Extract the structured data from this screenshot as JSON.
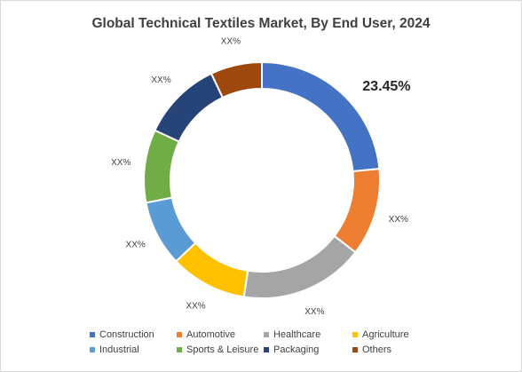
{
  "chart_data": {
    "type": "pie",
    "variant": "donut",
    "title": "Global Technical Textiles Market, By End User, 2024",
    "categories": [
      "Construction",
      "Automotive",
      "Healthcare",
      "Agriculture",
      "Industrial",
      "Sports & Leisure",
      "Packaging",
      "Others"
    ],
    "values": [
      23.45,
      12.0,
      17.0,
      10.5,
      9.0,
      10.0,
      11.0,
      7.05
    ],
    "data_labels": [
      "23.45%",
      "XX%",
      "XX%",
      "XX%",
      "XX%",
      "XX%",
      "XX%",
      "XX%"
    ],
    "colors": [
      "#4472C4",
      "#ED7D31",
      "#A5A5A5",
      "#FFC000",
      "#5B9BD5",
      "#70AD47",
      "#264478",
      "#9E480E"
    ],
    "legend_position": "bottom"
  }
}
